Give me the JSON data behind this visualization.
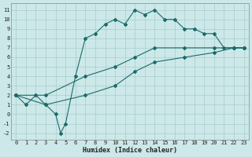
{
  "background_color": "#cce8e8",
  "grid_color": "#aacccc",
  "line_color": "#1a6b6b",
  "xlabel": "Humidex (Indice chaleur)",
  "xlim": [
    -0.5,
    23.5
  ],
  "ylim": [
    -2.7,
    11.7
  ],
  "xticks": [
    0,
    1,
    2,
    3,
    4,
    5,
    6,
    7,
    8,
    9,
    10,
    11,
    12,
    13,
    14,
    15,
    16,
    17,
    18,
    19,
    20,
    21,
    22,
    23
  ],
  "yticks": [
    -2,
    -1,
    0,
    1,
    2,
    3,
    4,
    5,
    6,
    7,
    8,
    9,
    10,
    11
  ],
  "line1_x": [
    0,
    1,
    2,
    3,
    4,
    4.5,
    5,
    6,
    7,
    8,
    9,
    10,
    11,
    12,
    13,
    14,
    15,
    16,
    17,
    18,
    19,
    20,
    21,
    22,
    23
  ],
  "line1_y": [
    2,
    1,
    2,
    1,
    0,
    -2,
    -1,
    4,
    8,
    8.5,
    9.5,
    10,
    9.5,
    11,
    10.5,
    11,
    10,
    10,
    9,
    9,
    8.5,
    8.5,
    7,
    7,
    7
  ],
  "line2_x": [
    0,
    3,
    7,
    10,
    12,
    14,
    17,
    20,
    22,
    23
  ],
  "line2_y": [
    2,
    2,
    4,
    5,
    6,
    7,
    7,
    7,
    7,
    7
  ],
  "line3_x": [
    0,
    3,
    7,
    10,
    12,
    14,
    17,
    20,
    22,
    23
  ],
  "line3_y": [
    2,
    1,
    2,
    3,
    4.5,
    5.5,
    6,
    6.5,
    7,
    7
  ],
  "marker_size": 2,
  "line_width": 0.8,
  "tick_fontsize": 5,
  "xlabel_fontsize": 6
}
